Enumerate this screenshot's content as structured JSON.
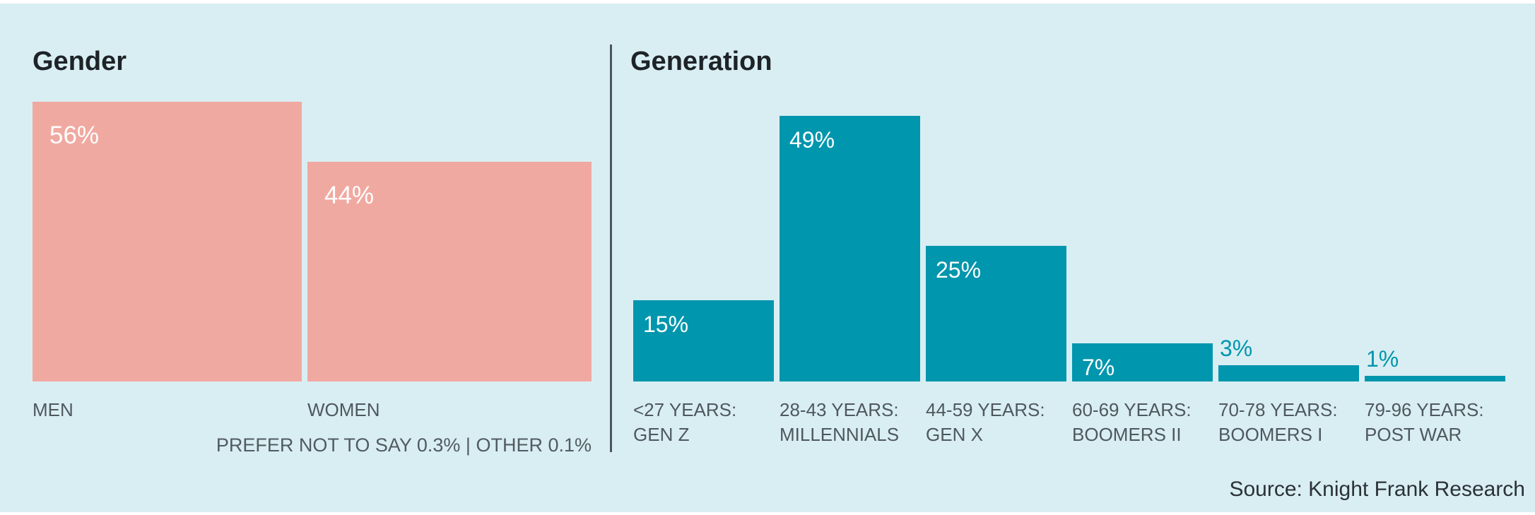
{
  "page": {
    "background_color": "#ffffff",
    "canvas_color": "#d9eef3",
    "divider_color": "#4d565c",
    "text_dark": "#1d2327",
    "text_gray": "#4e585e"
  },
  "source": "Source: Knight Frank Research",
  "chart_data": [
    {
      "type": "bar",
      "title": "Gender",
      "categories": [
        "MEN",
        "WOMEN"
      ],
      "values": [
        56,
        44
      ],
      "value_labels": [
        "56%",
        "44%"
      ],
      "unit": "%",
      "footnote": "PREFER NOT TO SAY 0.3% | OTHER 0.1%",
      "bar_color": "#f0a9a0",
      "value_label_color": "#ffffff",
      "ylim": [
        0,
        60
      ],
      "grid": false,
      "legend": "none"
    },
    {
      "type": "bar",
      "title": "Generation",
      "categories": [
        [
          "<27 YEARS:",
          "GEN Z"
        ],
        [
          "28-43 YEARS:",
          "MILLENNIALS"
        ],
        [
          "44-59 YEARS:",
          "GEN X"
        ],
        [
          "60-69 YEARS:",
          "BOOMERS II"
        ],
        [
          "70-78 YEARS:",
          "BOOMERS I"
        ],
        [
          "79-96 YEARS:",
          "POST WAR"
        ]
      ],
      "values": [
        15,
        49,
        25,
        7,
        3,
        1
      ],
      "value_labels": [
        "15%",
        "49%",
        "25%",
        "7%",
        "3%",
        "1%"
      ],
      "unit": "%",
      "bar_color": "#0096ad",
      "value_label_color_inside": "#ffffff",
      "value_label_color_outside": "#0096ad",
      "outside_label_threshold": 7,
      "ylim": [
        0,
        55
      ],
      "grid": false,
      "legend": "none"
    }
  ]
}
